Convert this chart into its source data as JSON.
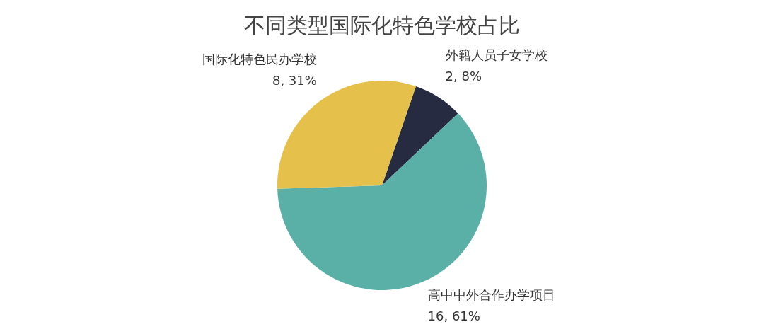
{
  "chart_data": {
    "type": "pie",
    "title": "不同类型国际化特色学校占比",
    "categories": [
      "外籍人员子女学校",
      "高中中外合作办学项目",
      "国际化特色民办学校"
    ],
    "values": [
      2,
      16,
      8
    ],
    "colors": [
      "#272b42",
      "#5aafa7",
      "#e5c04b"
    ],
    "value_labels": [
      "2, 8%",
      "16, 61%",
      "8, 31%"
    ],
    "legend": false
  }
}
